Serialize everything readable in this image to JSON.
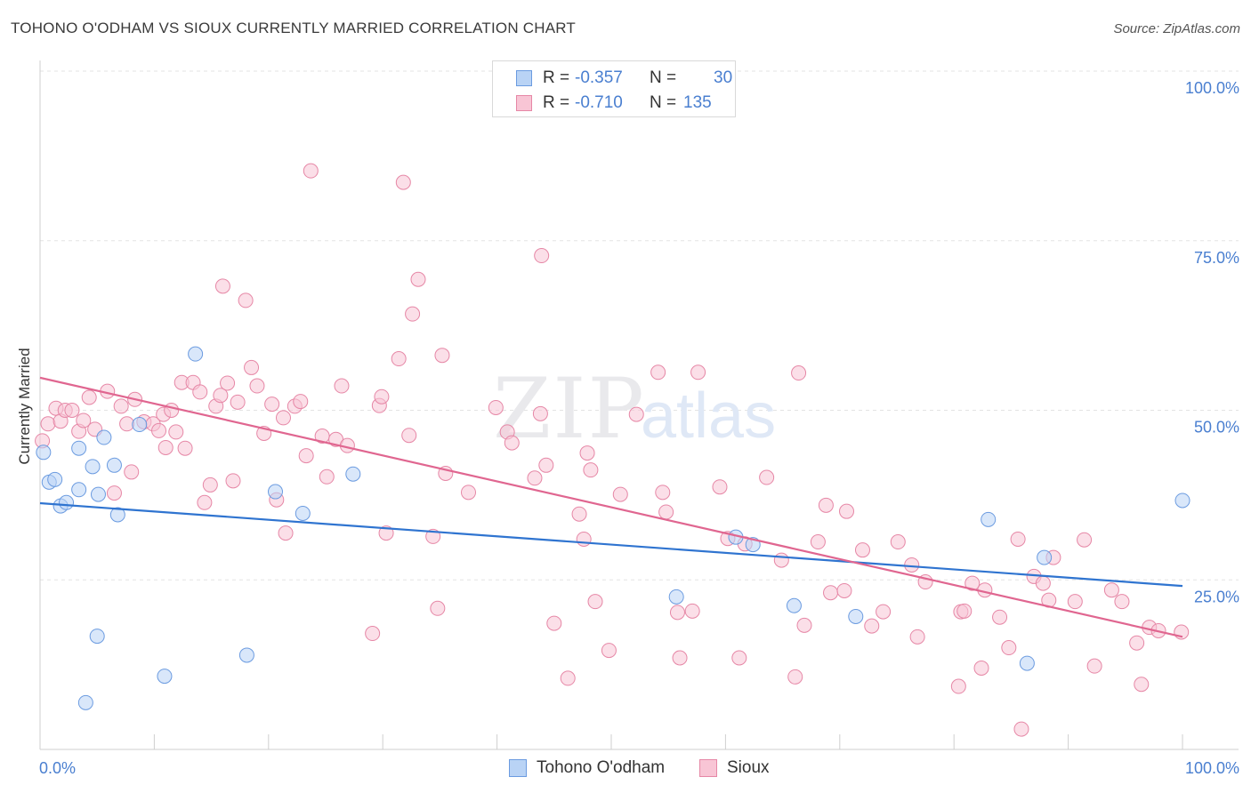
{
  "header": {
    "title": "TOHONO O'ODHAM VS SIOUX CURRENTLY MARRIED CORRELATION CHART",
    "source": "Source: ZipAtlas.com"
  },
  "watermark": {
    "zip": "ZIP",
    "atlas": "atlas"
  },
  "legend": {
    "series": [
      {
        "name": "Tohono O'odham",
        "r_label": "R =",
        "r_value": "-0.357",
        "n_label": "N =",
        "n_value": "30",
        "fill": "#b9d3f5",
        "stroke": "#6b9be0"
      },
      {
        "name": "Sioux",
        "r_label": "R =",
        "r_value": "-0.710",
        "n_label": "N =",
        "n_value": "135",
        "fill": "#f8c5d5",
        "stroke": "#e687a6"
      }
    ]
  },
  "chart_data": {
    "type": "scatter",
    "title": "TOHONO O'ODHAM VS SIOUX CURRENTLY MARRIED CORRELATION CHART",
    "xlabel": "",
    "ylabel": "Currently Married",
    "xlim": [
      0,
      100
    ],
    "ylim": [
      0,
      100
    ],
    "x_tick_labels": [
      "0.0%",
      "100.0%"
    ],
    "y_ticks": [
      25,
      50,
      75,
      100
    ],
    "y_tick_labels": [
      "25.0%",
      "50.0%",
      "75.0%",
      "100.0%"
    ],
    "grid": "horizontal dashed",
    "series": [
      {
        "name": "Tohono O'odham",
        "color": "#6b9be0",
        "fill": "#b9d3f5",
        "trend_color": "#2f74d0",
        "trend": {
          "x": [
            0,
            100
          ],
          "y": [
            36.3,
            24.1
          ]
        },
        "points": [
          [
            0.3,
            43.8
          ],
          [
            0.8,
            39.4
          ],
          [
            1.3,
            39.8
          ],
          [
            1.8,
            35.9
          ],
          [
            2.3,
            36.4
          ],
          [
            3.4,
            44.4
          ],
          [
            3.4,
            38.3
          ],
          [
            4.0,
            6.9
          ],
          [
            4.6,
            41.7
          ],
          [
            5.0,
            16.7
          ],
          [
            5.1,
            37.6
          ],
          [
            5.6,
            46.0
          ],
          [
            6.5,
            41.9
          ],
          [
            6.8,
            34.6
          ],
          [
            8.7,
            47.9
          ],
          [
            10.9,
            10.8
          ],
          [
            13.6,
            58.3
          ],
          [
            18.1,
            13.9
          ],
          [
            20.6,
            38.0
          ],
          [
            23.0,
            34.8
          ],
          [
            27.4,
            40.6
          ],
          [
            55.7,
            22.5
          ],
          [
            60.9,
            31.3
          ],
          [
            62.4,
            30.2
          ],
          [
            66.0,
            21.2
          ],
          [
            71.4,
            19.6
          ],
          [
            83.0,
            33.9
          ],
          [
            86.4,
            12.7
          ],
          [
            87.9,
            28.3
          ],
          [
            100.0,
            36.7
          ]
        ]
      },
      {
        "name": "Sioux",
        "color": "#e687a6",
        "fill": "#f8c5d5",
        "trend_color": "#e06690",
        "trend": {
          "x": [
            0,
            100
          ],
          "y": [
            54.8,
            16.6
          ]
        },
        "points": [
          [
            0.2,
            45.5
          ],
          [
            0.7,
            48.0
          ],
          [
            1.4,
            50.3
          ],
          [
            1.8,
            48.4
          ],
          [
            2.2,
            50.0
          ],
          [
            2.8,
            50.0
          ],
          [
            3.4,
            46.9
          ],
          [
            3.8,
            48.5
          ],
          [
            4.3,
            51.9
          ],
          [
            4.8,
            47.2
          ],
          [
            5.9,
            52.8
          ],
          [
            6.5,
            37.8
          ],
          [
            7.1,
            50.6
          ],
          [
            7.6,
            48.0
          ],
          [
            8.0,
            40.9
          ],
          [
            8.3,
            51.6
          ],
          [
            9.1,
            48.3
          ],
          [
            9.9,
            48.0
          ],
          [
            10.4,
            47.0
          ],
          [
            10.8,
            49.4
          ],
          [
            11.0,
            44.5
          ],
          [
            11.5,
            50.0
          ],
          [
            11.9,
            46.8
          ],
          [
            12.4,
            54.1
          ],
          [
            12.7,
            44.4
          ],
          [
            13.4,
            54.1
          ],
          [
            14.0,
            52.7
          ],
          [
            14.4,
            36.4
          ],
          [
            14.9,
            39.0
          ],
          [
            15.4,
            50.6
          ],
          [
            15.8,
            52.2
          ],
          [
            16.0,
            68.3
          ],
          [
            16.4,
            54.0
          ],
          [
            16.9,
            39.6
          ],
          [
            17.3,
            51.2
          ],
          [
            18.0,
            66.2
          ],
          [
            18.5,
            56.3
          ],
          [
            19.0,
            53.6
          ],
          [
            19.6,
            46.6
          ],
          [
            20.3,
            50.9
          ],
          [
            20.7,
            36.8
          ],
          [
            21.3,
            48.9
          ],
          [
            21.5,
            31.9
          ],
          [
            22.3,
            50.6
          ],
          [
            22.8,
            51.3
          ],
          [
            23.3,
            43.3
          ],
          [
            23.7,
            85.3
          ],
          [
            24.7,
            46.2
          ],
          [
            25.1,
            40.2
          ],
          [
            25.9,
            45.7
          ],
          [
            26.4,
            53.6
          ],
          [
            26.9,
            44.8
          ],
          [
            29.1,
            17.1
          ],
          [
            29.7,
            50.7
          ],
          [
            29.9,
            52.0
          ],
          [
            30.3,
            31.9
          ],
          [
            31.4,
            57.6
          ],
          [
            31.8,
            83.6
          ],
          [
            32.3,
            46.3
          ],
          [
            32.6,
            64.2
          ],
          [
            33.1,
            69.3
          ],
          [
            34.4,
            31.4
          ],
          [
            34.8,
            20.8
          ],
          [
            35.2,
            58.1
          ],
          [
            35.5,
            40.7
          ],
          [
            37.5,
            37.9
          ],
          [
            39.9,
            50.4
          ],
          [
            40.9,
            46.8
          ],
          [
            41.3,
            45.2
          ],
          [
            43.3,
            40.0
          ],
          [
            43.8,
            49.5
          ],
          [
            43.9,
            72.8
          ],
          [
            44.3,
            41.9
          ],
          [
            45.0,
            18.6
          ],
          [
            46.2,
            10.5
          ],
          [
            47.2,
            34.7
          ],
          [
            47.6,
            31.0
          ],
          [
            47.9,
            43.7
          ],
          [
            48.2,
            41.2
          ],
          [
            48.6,
            21.8
          ],
          [
            49.8,
            14.6
          ],
          [
            50.8,
            37.6
          ],
          [
            52.2,
            49.4
          ],
          [
            54.1,
            55.6
          ],
          [
            54.5,
            37.9
          ],
          [
            54.8,
            35.0
          ],
          [
            56.0,
            13.5
          ],
          [
            55.8,
            20.2
          ],
          [
            57.1,
            20.4
          ],
          [
            57.6,
            55.6
          ],
          [
            59.5,
            38.7
          ],
          [
            60.2,
            31.1
          ],
          [
            61.2,
            13.5
          ],
          [
            61.7,
            30.3
          ],
          [
            63.6,
            40.1
          ],
          [
            64.9,
            27.9
          ],
          [
            66.1,
            10.7
          ],
          [
            66.4,
            55.5
          ],
          [
            66.9,
            18.3
          ],
          [
            68.1,
            30.6
          ],
          [
            68.8,
            36.0
          ],
          [
            69.2,
            23.1
          ],
          [
            70.4,
            23.4
          ],
          [
            70.6,
            35.1
          ],
          [
            72.0,
            29.4
          ],
          [
            72.8,
            18.2
          ],
          [
            73.8,
            20.3
          ],
          [
            75.1,
            30.6
          ],
          [
            76.3,
            27.2
          ],
          [
            76.8,
            16.6
          ],
          [
            77.5,
            24.7
          ],
          [
            80.4,
            9.3
          ],
          [
            80.6,
            20.3
          ],
          [
            80.9,
            20.4
          ],
          [
            81.6,
            24.5
          ],
          [
            82.4,
            12.0
          ],
          [
            82.7,
            23.5
          ],
          [
            84.0,
            19.5
          ],
          [
            84.8,
            15.0
          ],
          [
            85.6,
            31.0
          ],
          [
            85.9,
            3.0
          ],
          [
            87.0,
            25.5
          ],
          [
            87.8,
            24.5
          ],
          [
            88.3,
            22.0
          ],
          [
            88.7,
            28.3
          ],
          [
            90.6,
            21.8
          ],
          [
            91.4,
            30.9
          ],
          [
            92.3,
            12.3
          ],
          [
            93.8,
            23.5
          ],
          [
            94.7,
            21.8
          ],
          [
            96.0,
            15.7
          ],
          [
            96.4,
            9.6
          ],
          [
            97.1,
            18.0
          ],
          [
            97.9,
            17.5
          ],
          [
            99.9,
            17.3
          ]
        ]
      }
    ]
  }
}
